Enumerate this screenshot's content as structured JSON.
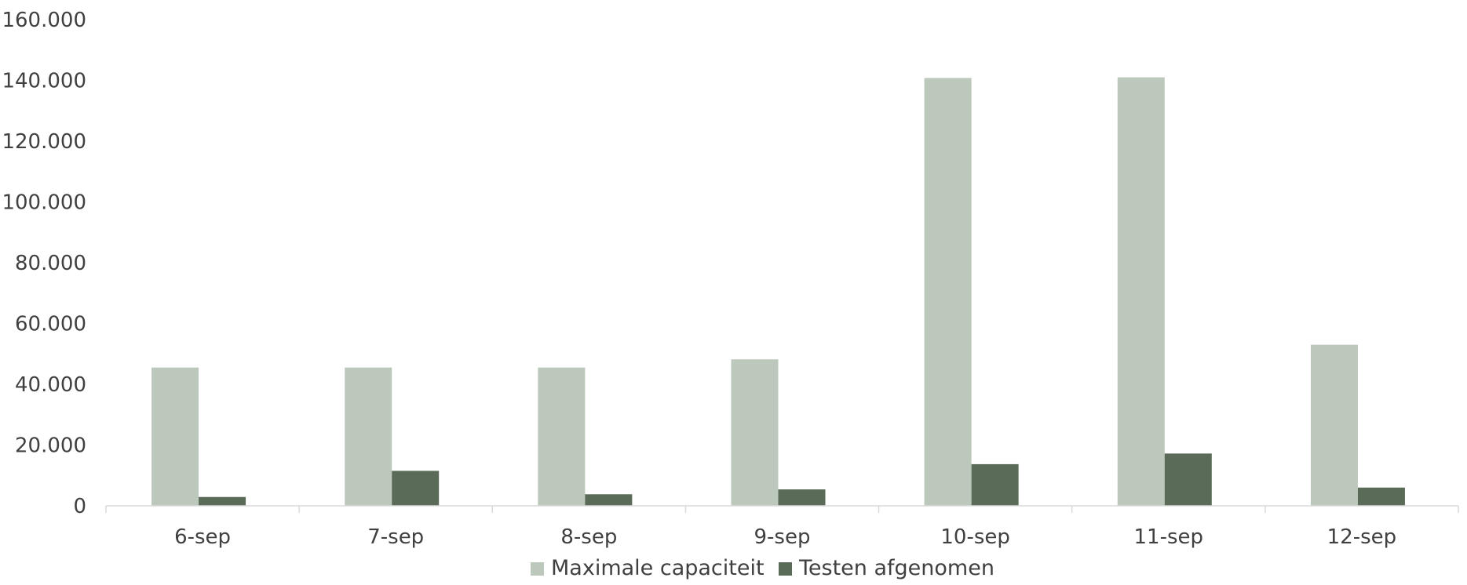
{
  "chart_data": {
    "type": "bar",
    "title": "",
    "xlabel": "",
    "ylabel": "",
    "categories": [
      "6-sep",
      "7-sep",
      "8-sep",
      "9-sep",
      "10-sep",
      "11-sep",
      "12-sep"
    ],
    "series": [
      {
        "name": "Maximale capaciteit",
        "color": "#bbc8bb",
        "values": [
          45500,
          45500,
          45500,
          48200,
          140800,
          141000,
          53000
        ]
      },
      {
        "name": "Testen afgenomen",
        "color": "#5a6b58",
        "values": [
          2900,
          11500,
          3800,
          5400,
          13700,
          17200,
          6000
        ]
      }
    ],
    "ylim": [
      0,
      160000
    ],
    "yticks": [
      0,
      20000,
      40000,
      60000,
      80000,
      100000,
      120000,
      140000,
      160000
    ],
    "ytick_labels": [
      "0",
      "20.000",
      "40.000",
      "60.000",
      "80.000",
      "100.000",
      "120.000",
      "140.000",
      "160.000"
    ],
    "grid": false,
    "legend_position": "bottom"
  }
}
